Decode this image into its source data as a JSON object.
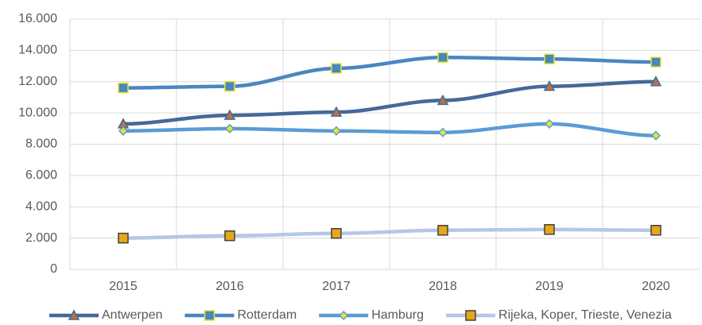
{
  "chart_data": {
    "type": "line",
    "categories": [
      "2015",
      "2016",
      "2017",
      "2018",
      "2019",
      "2020"
    ],
    "series": [
      {
        "name": "Antwerpen",
        "color": "#44699a",
        "marker": "triangle",
        "marker_color": "#c0703a",
        "marker_stroke": "#44699a",
        "values": [
          9300,
          9850,
          10050,
          10800,
          11700,
          12000
        ]
      },
      {
        "name": "Rotterdam",
        "color": "#4a86c0",
        "marker": "square",
        "marker_color": "#4a86c0",
        "marker_stroke": "#e6e62a",
        "values": [
          11600,
          11700,
          12850,
          13550,
          13450,
          13250
        ]
      },
      {
        "name": "Hamburg",
        "color": "#5b9bd5",
        "marker": "diamond",
        "marker_color": "#e6e62a",
        "marker_stroke": "#5b9bd5",
        "values": [
          8850,
          9000,
          8850,
          8750,
          9300,
          8550
        ]
      },
      {
        "name": "Rijeka, Koper, Trieste, Venezia",
        "color": "#b4c7e7",
        "marker": "square",
        "marker_color": "#e6a817",
        "marker_stroke": "#404040",
        "values": [
          2000,
          2150,
          2300,
          2500,
          2550,
          2500
        ]
      }
    ],
    "ylim": [
      0,
      16000
    ],
    "yticks": [
      0,
      {
        "value": 2000,
        "label": "2.000"
      },
      {
        "value": 4000,
        "label": "4.000"
      },
      {
        "value": 6000,
        "label": "6.000"
      },
      {
        "value": 8000,
        "label": "8.000"
      },
      {
        "value": 10000,
        "label": "10.000"
      },
      {
        "value": 12000,
        "label": "12.000"
      },
      {
        "value": 14000,
        "label": "14.000"
      },
      {
        "value": 16000,
        "label": "16.000"
      }
    ],
    "grid": true,
    "legend": "bottom"
  }
}
